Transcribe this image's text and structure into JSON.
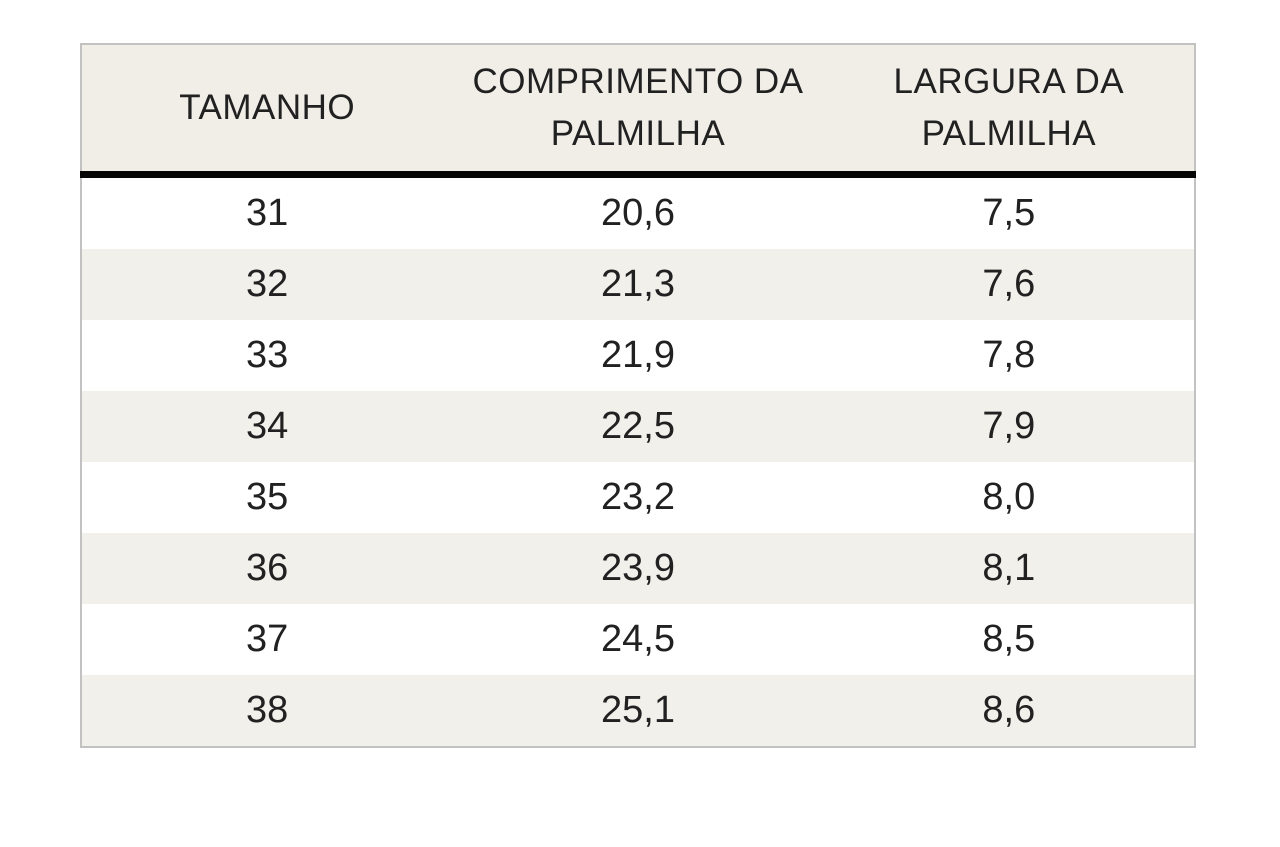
{
  "chart_data": {
    "type": "table",
    "title": "",
    "columns": [
      "TAMANHO",
      "COMPRIMENTO DA PALMILHA",
      "LARGURA DA PALMILHA"
    ],
    "rows": [
      [
        "31",
        "20,6",
        "7,5"
      ],
      [
        "32",
        "21,3",
        "7,6"
      ],
      [
        "33",
        "21,9",
        "7,8"
      ],
      [
        "34",
        "22,5",
        "7,9"
      ],
      [
        "35",
        "23,2",
        "8,0"
      ],
      [
        "36",
        "23,9",
        "8,1"
      ],
      [
        "37",
        "24,5",
        "8,5"
      ],
      [
        "38",
        "25,1",
        "8,6"
      ]
    ],
    "layout_hints": {
      "zebra_striping": true,
      "striped_rows": "even",
      "header_rule": "thick-black"
    }
  },
  "header_display": {
    "col1": {
      "line1": "TAMANHO"
    },
    "col2": {
      "line1": "COMPRIMENTO DA",
      "line2": "PALMILHA"
    },
    "col3": {
      "line1": "LARGURA DA",
      "line2": "PALMILHA"
    }
  },
  "colors": {
    "header_bg": "#f1eee8",
    "stripe_bg": "#f2f0ea",
    "outer_border": "#c2c2c2",
    "heavy_rule": "#050505",
    "text": "#212121",
    "page_bg": "#ffffff"
  }
}
